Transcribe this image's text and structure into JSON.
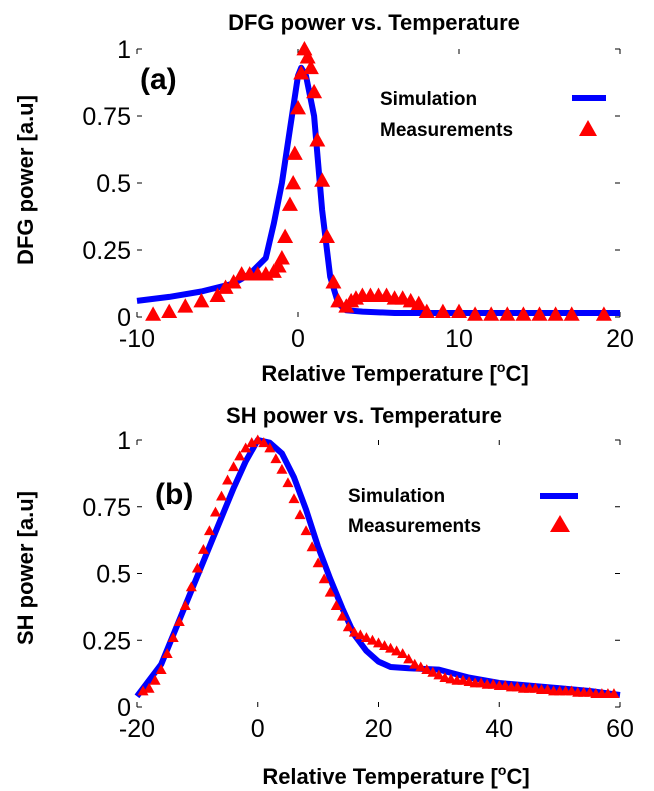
{
  "chart_data": [
    {
      "type": "line",
      "title": "DFG power vs. Temperature",
      "panel_label": "(a)",
      "xlabel": "Relative Temperature [oC]",
      "xlabel_main": "Relative Temperature [",
      "xlabel_sup": "o",
      "xlabel_end": "C]",
      "ylabel": "DFG power [a.u]",
      "xlim": [
        -10,
        20
      ],
      "ylim": [
        0,
        1
      ],
      "xticks": [
        -10,
        0,
        10,
        20
      ],
      "yticks": [
        0,
        0.25,
        0.5,
        0.75,
        1
      ],
      "ytick_labels": [
        "0",
        "0.25",
        "0.5",
        "0.75",
        "1"
      ],
      "grid": false,
      "legend_position": "top-right",
      "series": [
        {
          "name": "Simulation",
          "style": "line",
          "color": "#0000ff",
          "x": [
            -10,
            -8,
            -6,
            -4,
            -3,
            -2,
            -1.5,
            -1,
            -0.5,
            0,
            0.2,
            0.5,
            1,
            1.5,
            2,
            2.5,
            3,
            4,
            6,
            10,
            15,
            20
          ],
          "y": [
            0.06,
            0.075,
            0.095,
            0.125,
            0.16,
            0.22,
            0.35,
            0.5,
            0.7,
            0.9,
            0.93,
            0.9,
            0.75,
            0.4,
            0.15,
            0.05,
            0.025,
            0.02,
            0.015,
            0.015,
            0.015,
            0.015
          ]
        },
        {
          "name": "Measurements",
          "style": "triangle-marker",
          "color": "#ff0000",
          "x": [
            -9,
            -8,
            -7,
            -6,
            -5,
            -4.5,
            -4,
            -3.5,
            -3,
            -2.5,
            -2,
            -1.5,
            -1.2,
            -1,
            -0.8,
            -0.5,
            -0.3,
            -0.2,
            0,
            0.2,
            0.4,
            0.6,
            0.8,
            1,
            1.2,
            1.5,
            1.8,
            2.2,
            2.5,
            3,
            3.3,
            3.6,
            4,
            4.5,
            5,
            5.5,
            6,
            6.5,
            7,
            7.5,
            8,
            9,
            10,
            11,
            12,
            13,
            14,
            15,
            16,
            17,
            19
          ],
          "y": [
            0.01,
            0.02,
            0.04,
            0.06,
            0.08,
            0.11,
            0.13,
            0.16,
            0.16,
            0.16,
            0.16,
            0.17,
            0.19,
            0.22,
            0.3,
            0.42,
            0.5,
            0.61,
            0.78,
            0.91,
            1.0,
            0.97,
            0.93,
            0.84,
            0.66,
            0.51,
            0.3,
            0.13,
            0.06,
            0.04,
            0.06,
            0.07,
            0.08,
            0.08,
            0.08,
            0.08,
            0.07,
            0.07,
            0.06,
            0.05,
            0.02,
            0.02,
            0.02,
            0.01,
            0.01,
            0.01,
            0.01,
            0.01,
            0.01,
            0.01,
            0.01
          ]
        }
      ]
    },
    {
      "type": "line",
      "title": "SH power vs. Temperature",
      "panel_label": "(b)",
      "xlabel": "Relative Temperature [oC]",
      "xlabel_main": "Relative Temperature [",
      "xlabel_sup": "o",
      "xlabel_end": "C]",
      "ylabel": "SH power [a.u]",
      "xlim": [
        -20,
        60
      ],
      "ylim": [
        0,
        1
      ],
      "xticks": [
        -20,
        0,
        20,
        40,
        60
      ],
      "yticks": [
        0,
        0.25,
        0.5,
        0.75,
        1
      ],
      "ytick_labels": [
        "0",
        "0.25",
        "0.5",
        "0.75",
        "1"
      ],
      "grid": false,
      "legend_position": "top-right",
      "series": [
        {
          "name": "Simulation",
          "style": "line",
          "color": "#0000ff",
          "x": [
            -20,
            -16,
            -12,
            -8,
            -4,
            -2,
            0,
            2,
            4,
            6,
            8,
            10,
            12,
            14,
            16,
            18,
            20,
            22,
            25,
            30,
            35,
            40,
            45,
            50,
            55,
            60
          ],
          "y": [
            0.04,
            0.16,
            0.38,
            0.6,
            0.82,
            0.92,
            1.0,
            0.99,
            0.95,
            0.86,
            0.74,
            0.6,
            0.48,
            0.37,
            0.27,
            0.21,
            0.17,
            0.15,
            0.145,
            0.14,
            0.11,
            0.09,
            0.08,
            0.07,
            0.06,
            0.045
          ]
        },
        {
          "name": "Measurements",
          "style": "triangle-marker",
          "color": "#ff0000",
          "x": [
            -19,
            -18,
            -17,
            -16,
            -15,
            -14,
            -13,
            -12,
            -11,
            -10,
            -9,
            -8,
            -7,
            -6,
            -5,
            -4,
            -3,
            -2,
            -1,
            0,
            1,
            2,
            3,
            4,
            5,
            6,
            7,
            8,
            9,
            10,
            11,
            12,
            13,
            14,
            15,
            16,
            17,
            18,
            19,
            20,
            21,
            22,
            23,
            24,
            25,
            26,
            27,
            28,
            29,
            30,
            31,
            32,
            33,
            34,
            35,
            36,
            37,
            38,
            39,
            40,
            41,
            42,
            43,
            44,
            45,
            46,
            47,
            48,
            49,
            50,
            51,
            52,
            53,
            54,
            55,
            56,
            57,
            58,
            59
          ],
          "y": [
            0.06,
            0.07,
            0.1,
            0.14,
            0.2,
            0.26,
            0.32,
            0.38,
            0.45,
            0.52,
            0.59,
            0.66,
            0.73,
            0.79,
            0.85,
            0.9,
            0.94,
            0.97,
            0.99,
            1.0,
            0.99,
            0.97,
            0.93,
            0.89,
            0.84,
            0.78,
            0.72,
            0.66,
            0.6,
            0.54,
            0.48,
            0.43,
            0.38,
            0.34,
            0.3,
            0.28,
            0.27,
            0.26,
            0.25,
            0.24,
            0.23,
            0.22,
            0.21,
            0.2,
            0.18,
            0.16,
            0.15,
            0.14,
            0.13,
            0.12,
            0.11,
            0.105,
            0.1,
            0.1,
            0.095,
            0.09,
            0.09,
            0.085,
            0.085,
            0.08,
            0.08,
            0.075,
            0.075,
            0.07,
            0.07,
            0.07,
            0.065,
            0.065,
            0.06,
            0.06,
            0.06,
            0.06,
            0.055,
            0.055,
            0.055,
            0.05,
            0.05,
            0.05,
            0.05
          ]
        }
      ]
    }
  ]
}
